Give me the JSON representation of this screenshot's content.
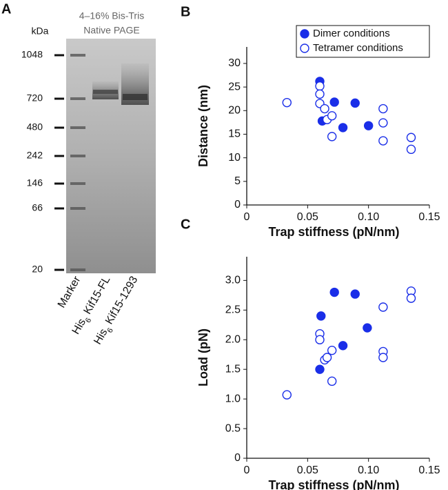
{
  "gel": {
    "label": "A",
    "title_lines": [
      "4–16% Bis-Tris",
      "Native PAGE"
    ],
    "unit": "kDa",
    "markers": [
      "1048",
      "720",
      "480",
      "242",
      "146",
      "66",
      "20"
    ],
    "lanes": [
      {
        "prefix": "Marker"
      },
      {
        "prefix": "His",
        "subscript": "6",
        "suffix": " Kif15-FL"
      },
      {
        "prefix": "His",
        "subscript": "6",
        "suffix": " Kif15-1293"
      }
    ]
  },
  "chart_data": [
    {
      "type": "scatter",
      "panel": "B",
      "x_label": "Trap stiffness (pN/nm)",
      "y_label": "Distance (nm)",
      "xlim": [
        0,
        0.15
      ],
      "xticks": [
        0,
        0.05,
        {
          "value": 0.1,
          "label": "0.10"
        },
        0.15
      ],
      "ylim": [
        0,
        33.5
      ],
      "yticks": [
        0,
        5,
        10,
        15,
        20,
        25,
        30
      ],
      "legend": "top-right",
      "series": [
        {
          "name": "Dimer conditions",
          "color": "#1a2ee8",
          "marker": "filled",
          "x": [
            0.06,
            0.072,
            0.089,
            0.062,
            0.079,
            0.1
          ],
          "values": [
            26.2,
            21.8,
            21.6,
            17.8,
            16.4,
            16.8
          ]
        },
        {
          "name": "Tetramer conditions",
          "color": "#1a2ee8",
          "marker": "open",
          "x": [
            0.033,
            0.06,
            0.06,
            0.06,
            0.064,
            0.066,
            0.07,
            0.07,
            0.112,
            0.112,
            0.112,
            0.135,
            0.135
          ],
          "values": [
            21.7,
            25.2,
            23.5,
            21.5,
            20.4,
            18.1,
            18.9,
            14.5,
            20.4,
            17.4,
            13.6,
            14.3,
            11.8
          ]
        }
      ]
    },
    {
      "type": "scatter",
      "panel": "C",
      "x_label": "Trap stiffness (pN/nm)",
      "y_label": "Load (pN)",
      "xlim": [
        0,
        0.15
      ],
      "xticks": [
        0,
        0.05,
        {
          "value": 0.1,
          "label": "0.10"
        },
        0.15
      ],
      "ylim": [
        0,
        3.4
      ],
      "yticks": [
        0,
        0.5,
        {
          "value": 1,
          "label": "1.0"
        },
        1.5,
        {
          "value": 2,
          "label": "2.0"
        },
        2.5,
        {
          "value": 3,
          "label": "3.0"
        }
      ],
      "series": [
        {
          "color": "#1a2ee8",
          "marker": "filled",
          "x": [
            0.061,
            0.072,
            0.089,
            0.099,
            0.079,
            0.06
          ],
          "values": [
            2.4,
            2.8,
            2.77,
            2.2,
            1.9,
            1.5
          ]
        },
        {
          "color": "#1a2ee8",
          "marker": "open",
          "x": [
            0.033,
            0.06,
            0.06,
            0.064,
            0.066,
            0.07,
            0.07,
            0.112,
            0.112,
            0.112,
            0.135,
            0.135
          ],
          "values": [
            1.07,
            2.1,
            2.0,
            1.66,
            1.7,
            1.82,
            1.3,
            2.55,
            1.8,
            1.7,
            2.82,
            2.7
          ]
        }
      ]
    }
  ]
}
